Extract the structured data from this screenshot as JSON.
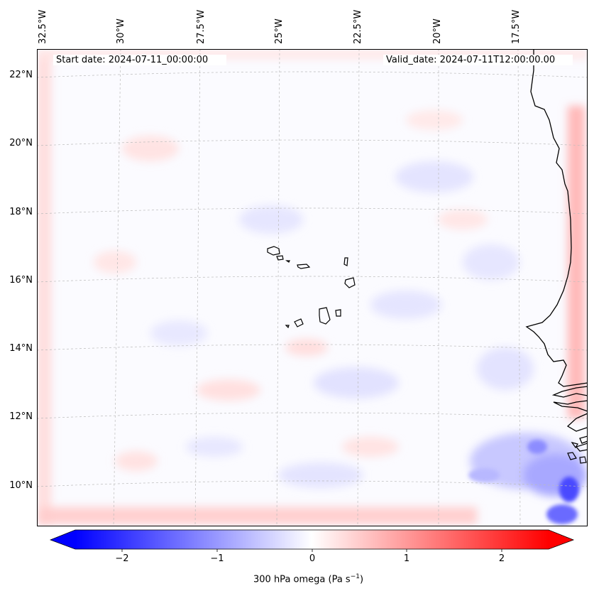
{
  "map": {
    "start_date": "Start date: 2024-07-11_00:00:00",
    "valid_date": "Valid_date: 2024-07-11T12:00:00.00",
    "longitude_labels": [
      "32.5°W",
      "30°W",
      "27.5°W",
      "25°W",
      "22.5°W",
      "20°W",
      "17.5°W"
    ],
    "latitude_labels": [
      "22°N",
      "20°N",
      "18°N",
      "16°N",
      "14°N",
      "12°N",
      "10°N"
    ],
    "variable": "300 hPa omega"
  },
  "colorbar": {
    "label_prefix": "300 hPa omega (Pa s",
    "label_exp": "−1",
    "label_suffix": ")",
    "ticks": [
      "−2",
      "−1",
      "0",
      "1",
      "2"
    ],
    "range": [
      -2.7,
      2.7
    ],
    "colors": {
      "low": "#0000ff",
      "mid": "#ffffff",
      "high": "#ff0000"
    }
  }
}
